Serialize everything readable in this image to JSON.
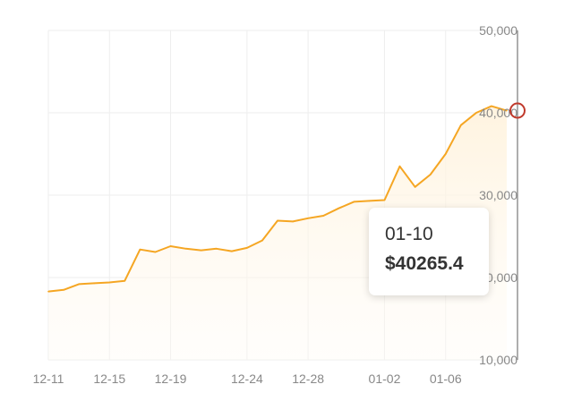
{
  "chart_data": {
    "type": "area",
    "colors": {
      "line": "#f5a623",
      "fill": "#fff8ec",
      "grid": "#eeeeee",
      "marker": "#c0392b",
      "axis_label": "#888888"
    },
    "xlabel": "",
    "ylabel": "",
    "ylim": [
      10000,
      50000
    ],
    "y_ticks": [
      10000,
      20000,
      30000,
      40000,
      50000
    ],
    "y_tick_labels": [
      "10,000",
      "20,000",
      "30,000",
      "40,000",
      "50,000"
    ],
    "y_axis_side": "right",
    "x_tick_labels": [
      "12-11",
      "12-15",
      "12-19",
      "12-24",
      "12-28",
      "01-02",
      "01-06"
    ],
    "grid": true,
    "series": [
      {
        "x": [
          "12-11",
          "12-12",
          "12-13",
          "12-14",
          "12-15",
          "12-16",
          "12-17",
          "12-18",
          "12-19",
          "12-20",
          "12-21",
          "12-22",
          "12-23",
          "12-24",
          "12-25",
          "12-26",
          "12-27",
          "12-28",
          "12-29",
          "12-30",
          "12-31",
          "01-01",
          "01-02",
          "01-03",
          "01-04",
          "01-05",
          "01-06",
          "01-07",
          "01-08",
          "01-09",
          "01-10"
        ],
        "values": [
          18300,
          18500,
          19200,
          19300,
          19400,
          19600,
          23400,
          23100,
          23800,
          23500,
          23300,
          23500,
          23200,
          23600,
          24500,
          26900,
          26800,
          27200,
          27500,
          28400,
          29200,
          29300,
          29400,
          33500,
          31000,
          32500,
          35000,
          38500,
          40000,
          40800,
          40265.4
        ]
      }
    ]
  },
  "tooltip": {
    "date": "01-10",
    "value": "$40265.4"
  }
}
